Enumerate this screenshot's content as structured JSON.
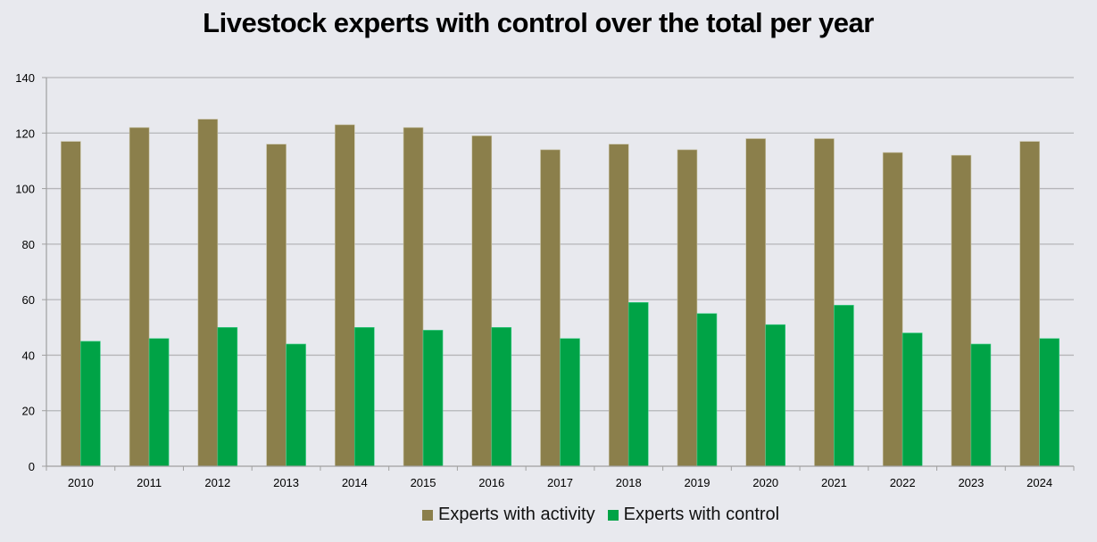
{
  "chart_data": {
    "type": "bar",
    "title": "Livestock experts with control over the total per year",
    "xlabel": "",
    "ylabel": "",
    "ylim": [
      0,
      140
    ],
    "yticks": [
      0,
      20,
      40,
      60,
      80,
      100,
      120,
      140
    ],
    "grid": true,
    "legend_position": "bottom",
    "categories": [
      "2010",
      "2011",
      "2012",
      "2013",
      "2014",
      "2015",
      "2016",
      "2017",
      "2018",
      "2019",
      "2020",
      "2021",
      "2022",
      "2023",
      "2024"
    ],
    "series": [
      {
        "name": "Experts with activity",
        "color": "#8b7f4b",
        "values": [
          117,
          122,
          125,
          116,
          123,
          122,
          119,
          114,
          116,
          114,
          118,
          118,
          113,
          112,
          117
        ]
      },
      {
        "name": "Experts with control",
        "color": "#00a346",
        "values": [
          45,
          46,
          50,
          44,
          50,
          49,
          50,
          46,
          59,
          55,
          51,
          58,
          48,
          44,
          46
        ]
      }
    ]
  }
}
